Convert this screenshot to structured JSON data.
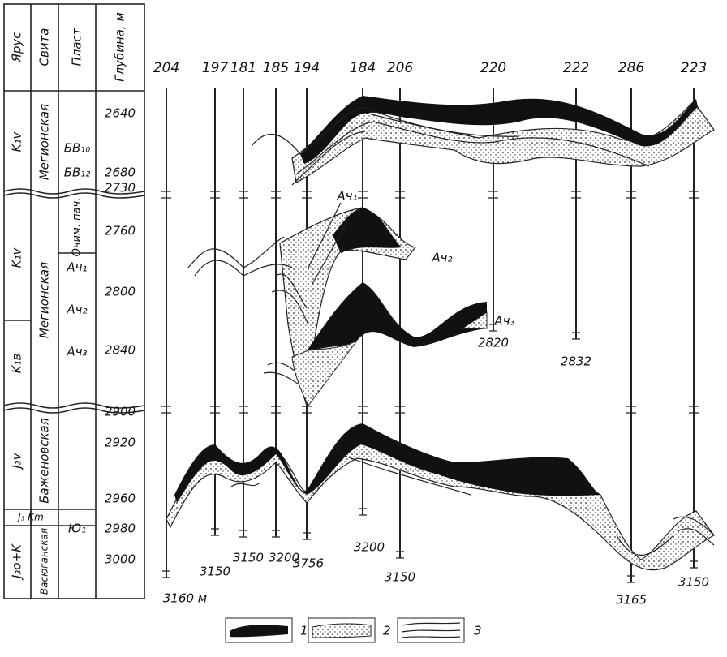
{
  "table": {
    "headers": [
      "Ярус",
      "Свита",
      "Пласт",
      "Глубина, м"
    ],
    "stages": [
      "K₁v",
      "K₁v",
      "K₁в",
      "J₃v",
      "J₃ Km",
      "J₃o+K"
    ],
    "suites": [
      "Мегионская",
      "Мегионская",
      "Баженовская",
      "Васюганская"
    ],
    "layers": [
      "БВ₁₀",
      "БВ₁₂",
      "Очим. пач.",
      "Ач₁",
      "Ач₂",
      "Ач₃",
      "Ю₁"
    ],
    "depths": [
      2640,
      2680,
      2730,
      2760,
      2800,
      2840,
      2900,
      2920,
      2960,
      2980,
      3000
    ]
  },
  "wells": [
    {
      "id": 204,
      "bottom": "3160 м"
    },
    {
      "id": 197,
      "bottom": 3150
    },
    {
      "id": 181,
      "bottom": 3150
    },
    {
      "id": 185,
      "bottom": 3200
    },
    {
      "id": 194,
      "bottom": 3756
    },
    {
      "id": 184,
      "bottom": 3200
    },
    {
      "id": 206,
      "bottom": 3150
    },
    {
      "id": 220,
      "bottom": 2820
    },
    {
      "id": 222,
      "bottom": 2832
    },
    {
      "id": 286,
      "bottom": 3165
    },
    {
      "id": 223,
      "bottom": 3150
    }
  ],
  "annotations": [
    "Ач₁",
    "Ач₂",
    "Ач₃"
  ],
  "legend": [
    "1",
    "2",
    "3"
  ]
}
